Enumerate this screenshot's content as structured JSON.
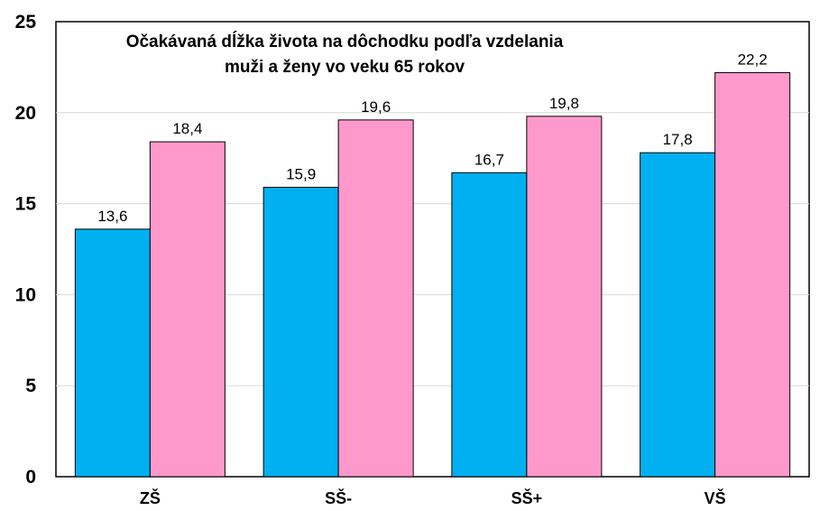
{
  "chart_data": {
    "type": "bar",
    "title_lines": [
      "Očakávaná dĺžka života na dôchodku podľa vzdelania",
      "muži a ženy vo veku 65 rokov"
    ],
    "categories": [
      "ZŠ",
      "SŠ-",
      "SŠ+",
      "VŠ"
    ],
    "series": [
      {
        "values": [
          13.6,
          15.9,
          16.7,
          17.8
        ],
        "labels": [
          "13,6",
          "15,9",
          "16,7",
          "17,8"
        ],
        "color": "#00b0f0"
      },
      {
        "values": [
          18.4,
          19.6,
          19.8,
          22.2
        ],
        "labels": [
          "18,4",
          "19,6",
          "19,8",
          "22,2"
        ],
        "color": "#ff99cc"
      }
    ],
    "ylim": [
      0,
      25
    ],
    "yticks": [
      0,
      5,
      10,
      15,
      20,
      25
    ],
    "grid": true,
    "legend": "none"
  }
}
